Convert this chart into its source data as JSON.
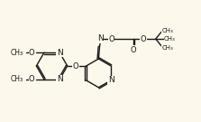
{
  "bg_color": "#fdf8ec",
  "line_color": "#1a1a1a",
  "lw": 1.0,
  "fs": 6.0,
  "xlim": [
    0,
    10
  ],
  "ylim": [
    0,
    6
  ]
}
